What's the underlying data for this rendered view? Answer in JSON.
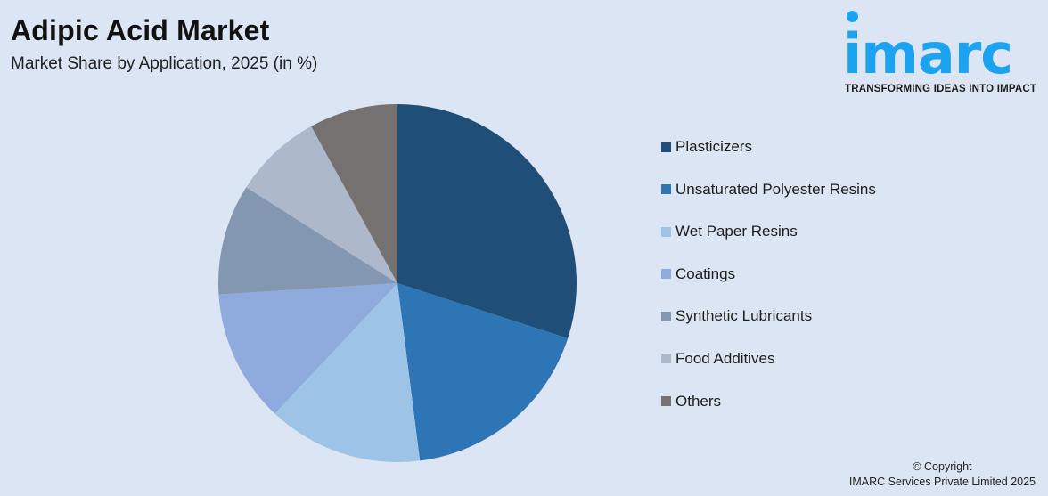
{
  "header": {
    "title": "Adipic Acid Market",
    "subtitle": "Market Share by Application, 2025 (in %)"
  },
  "logo": {
    "wordmark": "imarc",
    "tagline": "TRANSFORMING IDEAS INTO IMPACT",
    "color": "#1ba3f0"
  },
  "legend": {
    "items": [
      {
        "label": "Plasticizers",
        "color": "#1f4e79"
      },
      {
        "label": "Unsaturated Polyester Resins",
        "color": "#2e75b6"
      },
      {
        "label": "Wet Paper Resins",
        "color": "#9dc3e6"
      },
      {
        "label": "Coatings",
        "color": "#8faadc"
      },
      {
        "label": "Synthetic Lubricants",
        "color": "#8497b0"
      },
      {
        "label": "Food Additives",
        "color": "#adb9ca"
      },
      {
        "label": "Others",
        "color": "#767171"
      }
    ]
  },
  "footer": {
    "copyright_line1": "© Copyright",
    "copyright_line2": "IMARC Services Private Limited 2025"
  },
  "chart_data": {
    "type": "pie",
    "title": "Adipic Acid Market",
    "subtitle": "Market Share by Application, 2025 (in %)",
    "categories": [
      "Plasticizers",
      "Unsaturated Polyester Resins",
      "Wet Paper Resins",
      "Coatings",
      "Synthetic Lubricants",
      "Food Additives",
      "Others"
    ],
    "values": [
      30,
      18,
      14,
      12,
      10,
      8,
      8
    ],
    "colors": [
      "#1f4e79",
      "#2e75b6",
      "#9dc3e6",
      "#8faadc",
      "#8497b0",
      "#adb9ca",
      "#767171"
    ],
    "start_angle": "12 o'clock, clockwise",
    "legend_position": "right",
    "data_labels": false
  }
}
